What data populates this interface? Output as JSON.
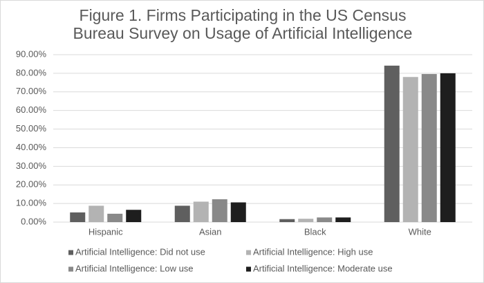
{
  "chart_data": {
    "type": "bar",
    "title": "Figure 1. Firms Participating in the US Census Bureau Survey on Usage of Artificial Intelligence",
    "categories": [
      "Hispanic",
      "Asian",
      "Black",
      "White"
    ],
    "series": [
      {
        "name": "Artificial Intelligence: Did not use",
        "color": "#5f5f5f",
        "values": [
          5.2,
          8.8,
          1.6,
          84.1
        ]
      },
      {
        "name": "Artificial Intelligence: High use",
        "color": "#b3b3b3",
        "values": [
          8.8,
          11.0,
          1.8,
          78.0
        ]
      },
      {
        "name": "Artificial Intelligence: Low use",
        "color": "#898989",
        "values": [
          4.5,
          12.3,
          2.5,
          79.6
        ]
      },
      {
        "name": "Artificial Intelligence: Moderate use",
        "color": "#1e1e1e",
        "values": [
          6.6,
          10.6,
          2.5,
          80.0
        ]
      }
    ],
    "ylim": [
      0,
      90
    ],
    "yticks": [
      {
        "value": 0,
        "label": "0.00%"
      },
      {
        "value": 10,
        "label": "10.00%"
      },
      {
        "value": 20,
        "label": "20.00%"
      },
      {
        "value": 30,
        "label": "30.00%"
      },
      {
        "value": 40,
        "label": "40.00%"
      },
      {
        "value": 50,
        "label": "50.00%"
      },
      {
        "value": 60,
        "label": "60.00%"
      },
      {
        "value": 70,
        "label": "70.00%"
      },
      {
        "value": 80,
        "label": "80.00%"
      },
      {
        "value": 90,
        "label": "90.00%"
      }
    ],
    "grid": true
  }
}
